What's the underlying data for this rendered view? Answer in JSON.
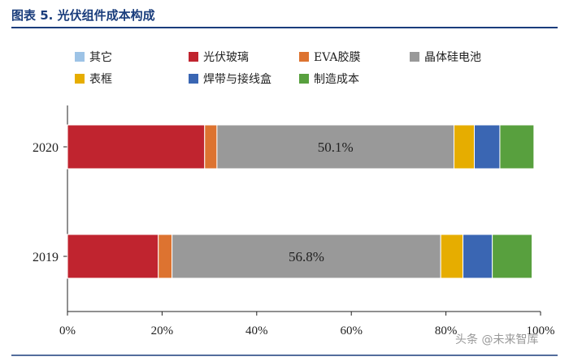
{
  "title": "图表 5.   光伏组件成本构成",
  "watermark": "头条 @未来智库",
  "chart_data": {
    "type": "bar",
    "orientation": "horizontal",
    "stacked": true,
    "categories": [
      "2020",
      "2019"
    ],
    "series": [
      {
        "name": "其它",
        "color": "#9dc3e6",
        "values": [
          0.0,
          0.0
        ]
      },
      {
        "name": "光伏玻璃",
        "color": "#c0242f",
        "values": [
          29.0,
          19.2
        ]
      },
      {
        "name": "EVA胶膜",
        "color": "#dd7330",
        "values": [
          2.6,
          2.9
        ]
      },
      {
        "name": "晶体硅电池",
        "color": "#999999",
        "values": [
          50.1,
          56.8
        ]
      },
      {
        "name": "表框",
        "color": "#e6ad00",
        "values": [
          4.3,
          4.7
        ]
      },
      {
        "name": "焊带与接线盒",
        "color": "#3a66b3",
        "values": [
          5.4,
          6.2
        ]
      },
      {
        "name": "制造成本",
        "color": "#58a03e",
        "values": [
          7.2,
          8.4
        ]
      }
    ],
    "data_labels": {
      "晶体硅电池": [
        "50.1%",
        "56.8%"
      ]
    },
    "xlim": [
      0,
      100
    ],
    "xticks": [
      "0%",
      "20%",
      "40%",
      "60%",
      "80%",
      "100%"
    ],
    "legend_position": "top"
  }
}
